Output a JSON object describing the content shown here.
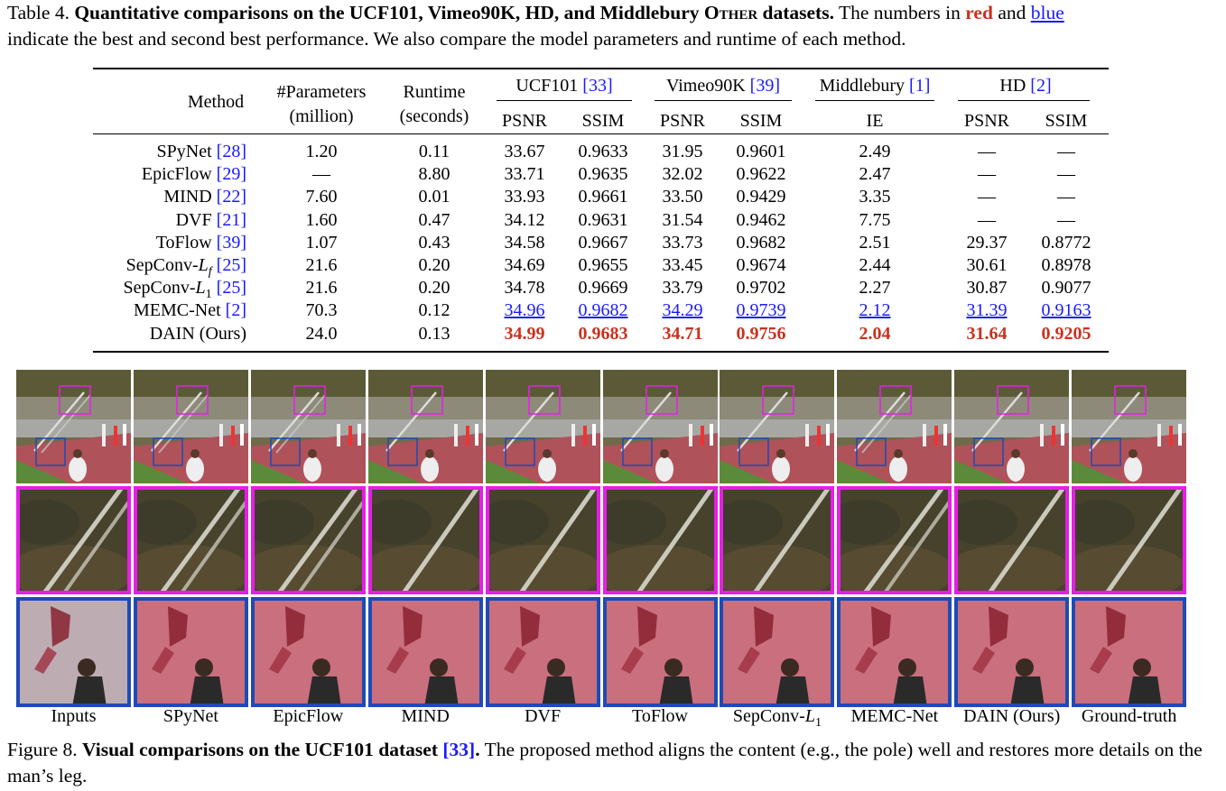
{
  "table_caption": {
    "prefix": "Table 4.",
    "bold_title_a": "Quantitative comparisons on the UCF101, Vimeo90K, HD, and Middlebury ",
    "bold_title_smallcaps": "Other",
    "bold_title_b": " datasets.",
    "text_a": " The numbers in ",
    "red_word": "red",
    "text_b": " and ",
    "blue_word": "blue",
    "text_c": "indicate the best and second best performance. We also compare the model parameters and runtime of each method."
  },
  "table": {
    "headers": {
      "method": "Method",
      "params_1": "#Parameters",
      "params_2": "(million)",
      "runtime_1": "Runtime",
      "runtime_2": "(seconds)",
      "ucf_name": "UCF101 ",
      "ucf_ref": "[33]",
      "vimeo_name": "Vimeo90K ",
      "vimeo_ref": "[39]",
      "middlebury_name": "Middlebury ",
      "middlebury_ref": "[1]",
      "hd_name": "HD ",
      "hd_ref": "[2]",
      "psnr": "PSNR",
      "ssim": "SSIM",
      "ie": "IE"
    },
    "rows": [
      {
        "name": "SPyNet ",
        "ref": "[28]",
        "params": "1.20",
        "runtime": "0.11",
        "ucf_psnr": "33.67",
        "ucf_ssim": "0.9633",
        "vim_psnr": "31.95",
        "vim_ssim": "0.9601",
        "ie": "2.49",
        "hd_psnr": "—",
        "hd_ssim": "—"
      },
      {
        "name": "EpicFlow ",
        "ref": "[29]",
        "params": "—",
        "runtime": "8.80",
        "ucf_psnr": "33.71",
        "ucf_ssim": "0.9635",
        "vim_psnr": "32.02",
        "vim_ssim": "0.9622",
        "ie": "2.47",
        "hd_psnr": "—",
        "hd_ssim": "—"
      },
      {
        "name": "MIND ",
        "ref": "[22]",
        "params": "7.60",
        "runtime": "0.01",
        "ucf_psnr": "33.93",
        "ucf_ssim": "0.9661",
        "vim_psnr": "33.50",
        "vim_ssim": "0.9429",
        "ie": "3.35",
        "hd_psnr": "—",
        "hd_ssim": "—"
      },
      {
        "name": "DVF ",
        "ref": "[21]",
        "params": "1.60",
        "runtime": "0.47",
        "ucf_psnr": "34.12",
        "ucf_ssim": "0.9631",
        "vim_psnr": "31.54",
        "vim_ssim": "0.9462",
        "ie": "7.75",
        "hd_psnr": "—",
        "hd_ssim": "—"
      },
      {
        "name": "ToFlow ",
        "ref": "[39]",
        "params": "1.07",
        "runtime": "0.43",
        "ucf_psnr": "34.58",
        "ucf_ssim": "0.9667",
        "vim_psnr": "33.73",
        "vim_ssim": "0.9682",
        "ie": "2.51",
        "hd_psnr": "29.37",
        "hd_ssim": "0.8772"
      },
      {
        "name": "SepConv-",
        "sym": "L",
        "sub": "f",
        "ref": "[25]",
        "params": "21.6",
        "runtime": "0.20",
        "ucf_psnr": "34.69",
        "ucf_ssim": "0.9655",
        "vim_psnr": "33.45",
        "vim_ssim": "0.9674",
        "ie": "2.44",
        "hd_psnr": "30.61",
        "hd_ssim": "0.8978"
      },
      {
        "name": "SepConv-",
        "sym": "L",
        "sub": "1",
        "ref": "[25]",
        "params": "21.6",
        "runtime": "0.20",
        "ucf_psnr": "34.78",
        "ucf_ssim": "0.9669",
        "vim_psnr": "33.79",
        "vim_ssim": "0.9702",
        "ie": "2.27",
        "hd_psnr": "30.87",
        "hd_ssim": "0.9077"
      },
      {
        "name": "MEMC-Net ",
        "ref": "[2]",
        "params": "70.3",
        "runtime": "0.12",
        "ucf_psnr": "34.96",
        "ucf_ssim": "0.9682",
        "vim_psnr": "34.29",
        "vim_ssim": "0.9739",
        "ie": "2.12",
        "hd_psnr": "31.39",
        "hd_ssim": "0.9163",
        "style": "second"
      },
      {
        "name": "DAIN (Ours)",
        "ref": "",
        "params": "24.0",
        "runtime": "0.13",
        "ucf_psnr": "34.99",
        "ucf_ssim": "0.9683",
        "vim_psnr": "34.71",
        "vim_ssim": "0.9756",
        "ie": "2.04",
        "hd_psnr": "31.64",
        "hd_ssim": "0.9205",
        "style": "best"
      }
    ]
  },
  "figure": {
    "columns": [
      "Inputs",
      "SPyNet",
      "EpicFlow",
      "MIND",
      "DVF",
      "ToFlow",
      "SepConv-L1",
      "MEMC-Net",
      "DAIN (Ours)",
      "Ground-truth"
    ],
    "label_parts": {
      "sepconv_prefix": "SepConv-",
      "sepconv_sym": "L",
      "sepconv_sub": "1"
    },
    "colors": {
      "magenta": "#e61ee6",
      "blue": "#1e4bb4",
      "track": "#b0525a",
      "grass": "#5b8a3a"
    }
  },
  "figure_caption": {
    "prefix": "Figure 8. ",
    "bold": "Visual comparisons on the UCF101 dataset ",
    "bold_ref": "[33]",
    "bold_end": ".",
    "text": " The proposed method aligns the content (e.g., the pole) well and restores more details on the man’s leg."
  }
}
